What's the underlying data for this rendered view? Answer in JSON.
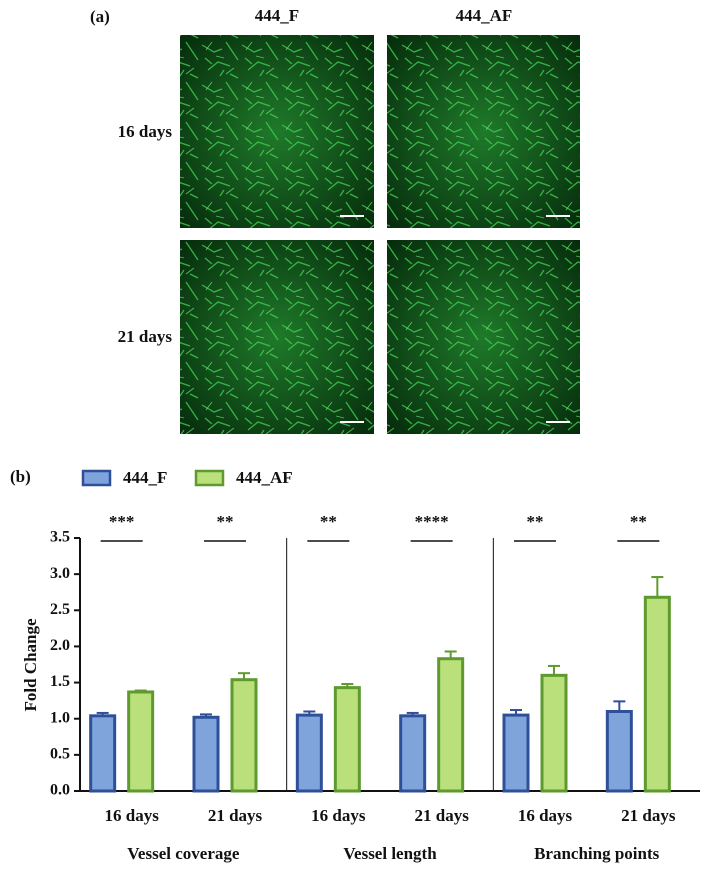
{
  "panel_a": {
    "label": "(a)",
    "columns": [
      "444_F",
      "444_AF"
    ],
    "rows": [
      "16 days",
      "21 days"
    ]
  },
  "chart_data": {
    "type": "bar",
    "panel_label": "(b)",
    "ylabel": "Fold Change",
    "groups": [
      "Vessel coverage",
      "Vessel length",
      "Branching points"
    ],
    "categories": [
      "16 days",
      "21 days",
      "16 days",
      "21 days",
      "16 days",
      "21 days"
    ],
    "series": [
      {
        "name": "444_F",
        "color": "#7fa4dc",
        "edge": "#2f4f99",
        "values": [
          1.04,
          1.02,
          1.05,
          1.04,
          1.05,
          1.1
        ],
        "errors": [
          0.04,
          0.04,
          0.05,
          0.04,
          0.07,
          0.14
        ]
      },
      {
        "name": "444_AF",
        "color": "#b9e07a",
        "edge": "#5e9a2e",
        "values": [
          1.37,
          1.54,
          1.43,
          1.83,
          1.6,
          2.68
        ],
        "errors": [
          0.02,
          0.09,
          0.05,
          0.1,
          0.13,
          0.28
        ]
      }
    ],
    "significance": [
      "***",
      "**",
      "**",
      "****",
      "**",
      "**"
    ],
    "ylim": [
      0,
      3.5
    ],
    "yticks": [
      {
        "value": 0,
        "label": "0.0"
      },
      {
        "value": 0.5,
        "label": "0.5"
      },
      {
        "value": 1,
        "label": "1.0"
      },
      {
        "value": 1.5,
        "label": "1.5"
      },
      {
        "value": 2,
        "label": "2.0"
      },
      {
        "value": 2.5,
        "label": "2.5"
      },
      {
        "value": 3,
        "label": "3.0"
      },
      {
        "value": 3.5,
        "label": "3.5"
      }
    ]
  }
}
